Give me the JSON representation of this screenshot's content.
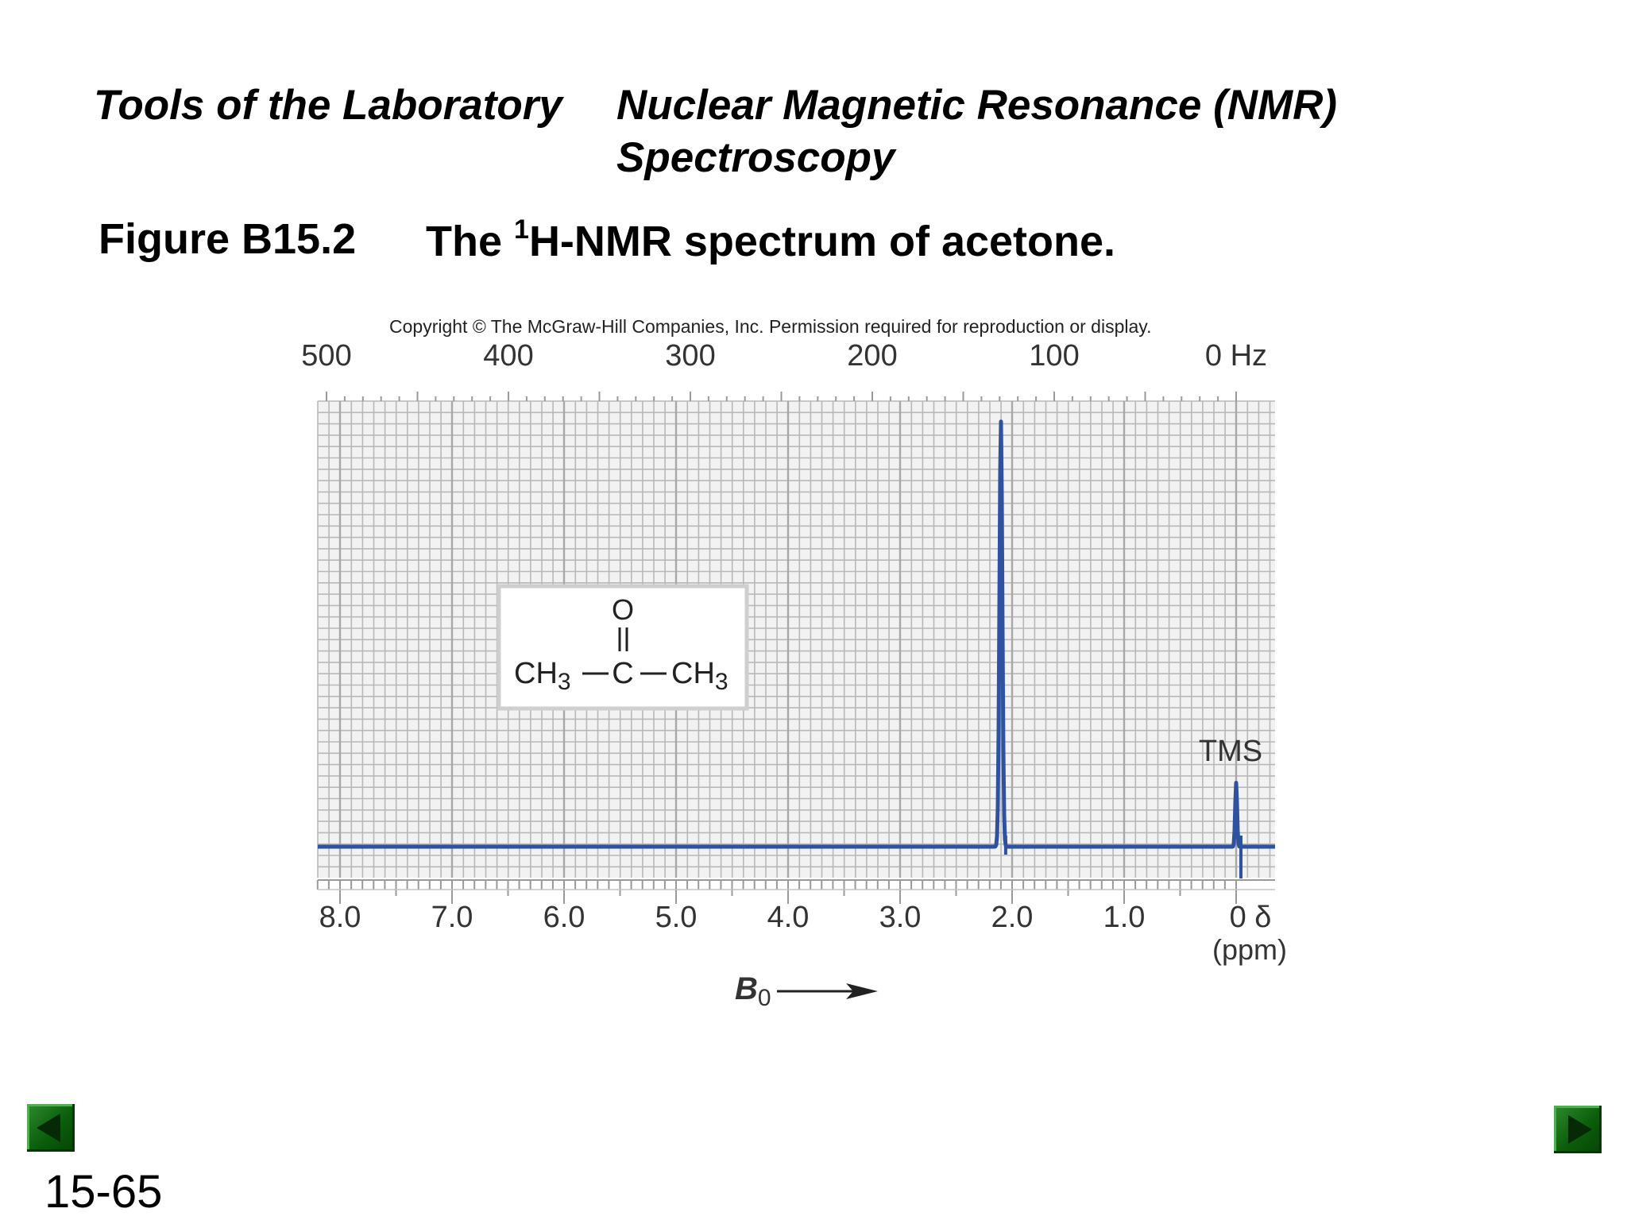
{
  "header": {
    "left_title": "Tools of the Laboratory",
    "right_title_line1": "Nuclear Magnetic Resonance (NMR)",
    "right_title_line2": "Spectroscopy"
  },
  "figure": {
    "label": "Figure B15.2",
    "caption_prefix": "The ",
    "caption_superscript": "1",
    "caption_rest": "H-NMR spectrum of acetone."
  },
  "copyright": "Copyright © The McGraw-Hill Companies, Inc. Permission required for reproduction or display.",
  "chart_data": {
    "type": "line",
    "x_bottom": {
      "ticks": [
        8.0,
        7.0,
        6.0,
        5.0,
        4.0,
        3.0,
        2.0,
        1.0,
        0
      ],
      "tick_labels": [
        "8.0",
        "7.0",
        "6.0",
        "5.0",
        "4.0",
        "3.0",
        "2.0",
        "1.0",
        "0 δ"
      ],
      "unit_label": "(ppm)",
      "reversed": true
    },
    "x_top": {
      "ticks": [
        500,
        400,
        300,
        200,
        100,
        0
      ],
      "tick_labels": [
        "500",
        "400",
        "300",
        "200",
        "100",
        "0 Hz"
      ],
      "reversed": true
    },
    "grid": true,
    "grid_color": "#b8b8b8",
    "line_color": "#2f52a0",
    "peaks": [
      {
        "delta": 2.1,
        "relative_height": 1.0
      },
      {
        "delta": 0.0,
        "relative_height": 0.15
      }
    ],
    "annotations": {
      "tms_label": "TMS",
      "field_label": "B",
      "field_subscript": "0"
    },
    "structure": {
      "oxygen": "O",
      "double_bond": "||",
      "formula_left": "CH",
      "left_subscript": "3",
      "center": "C",
      "formula_right": "CH",
      "right_subscript": "3"
    }
  },
  "navigation": {
    "slide_number": "15-65"
  }
}
